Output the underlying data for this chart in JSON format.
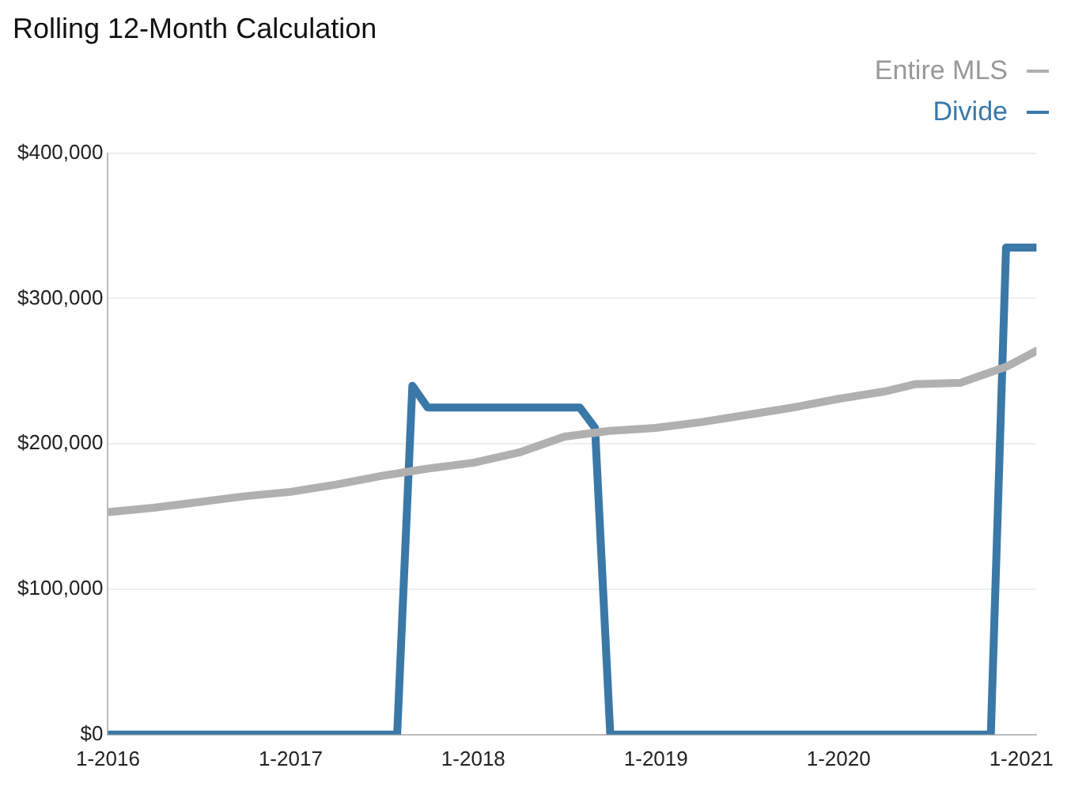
{
  "chart_data": {
    "type": "line",
    "title": "Rolling 12-Month Calculation",
    "legend": "top right",
    "grid": "y",
    "marker": "none",
    "line_style": "solid",
    "xlim": [
      "2016-01",
      "2021-02"
    ],
    "xticks": [
      {
        "value": "2016-01",
        "label": "1-2016"
      },
      {
        "value": "2017-01",
        "label": "1-2017"
      },
      {
        "value": "2018-01",
        "label": "1-2018"
      },
      {
        "value": "2019-01",
        "label": "1-2019"
      },
      {
        "value": "2020-01",
        "label": "1-2020"
      },
      {
        "value": "2021-01",
        "label": "1-2021"
      }
    ],
    "ylim": [
      0,
      400000
    ],
    "yticks": [
      {
        "value": 0,
        "label": "$0"
      },
      {
        "value": 100000,
        "label": "$100,000"
      },
      {
        "value": 200000,
        "label": "$200,000"
      },
      {
        "value": 300000,
        "label": "$300,000"
      },
      {
        "value": 400000,
        "label": "$400,000"
      }
    ],
    "series": [
      {
        "name": "Entire MLS",
        "color": "#b0b0b0",
        "x": [
          "2016-01",
          "2016-04",
          "2016-07",
          "2016-10",
          "2017-01",
          "2017-04",
          "2017-07",
          "2017-10",
          "2018-01",
          "2018-04",
          "2018-07",
          "2018-10",
          "2019-01",
          "2019-04",
          "2019-07",
          "2019-10",
          "2020-01",
          "2020-04",
          "2020-06",
          "2020-09",
          "2020-12",
          "2021-02"
        ],
        "values": [
          153000,
          156000,
          160000,
          164000,
          167000,
          172000,
          178000,
          183000,
          187000,
          194000,
          205000,
          209000,
          211000,
          215000,
          220000,
          225000,
          231000,
          236000,
          241000,
          242000,
          253000,
          264000
        ]
      },
      {
        "name": "Divide",
        "color": "#3a78a8",
        "x": [
          "2016-01",
          "2017-08",
          "2017-09",
          "2017-10",
          "2018-08",
          "2018-09",
          "2018-10",
          "2020-11",
          "2020-12",
          "2021-02"
        ],
        "values": [
          0,
          0,
          240000,
          225000,
          225000,
          211000,
          0,
          0,
          335000,
          335000
        ]
      }
    ]
  }
}
